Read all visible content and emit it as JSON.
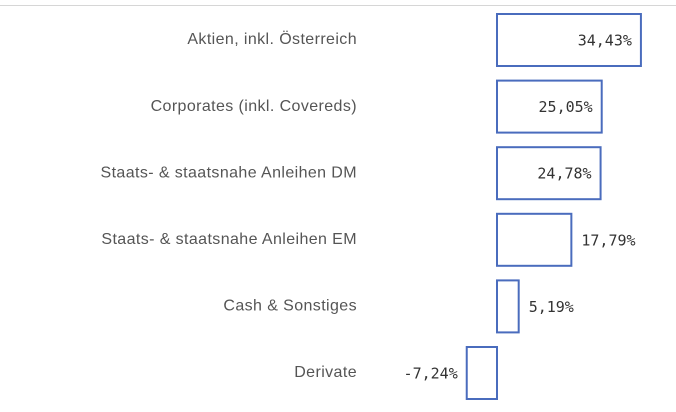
{
  "chart_data": {
    "type": "bar",
    "orientation": "horizontal",
    "color": "#4a6cbd",
    "categories": [
      "Aktien, inkl. Österreich",
      "Corporates (inkl. Covereds)",
      "Staats-  & staatsnahe Anleihen DM",
      "Staats-  & staatsnahe Anleihen EM",
      "Cash & Sonstiges",
      "Derivate"
    ],
    "values": [
      34.43,
      25.05,
      24.78,
      17.79,
      5.19,
      -7.24
    ],
    "value_labels": [
      "34,43%",
      "25,05%",
      "24,78%",
      "17,79%",
      "5,19%",
      "-7,24%"
    ]
  }
}
